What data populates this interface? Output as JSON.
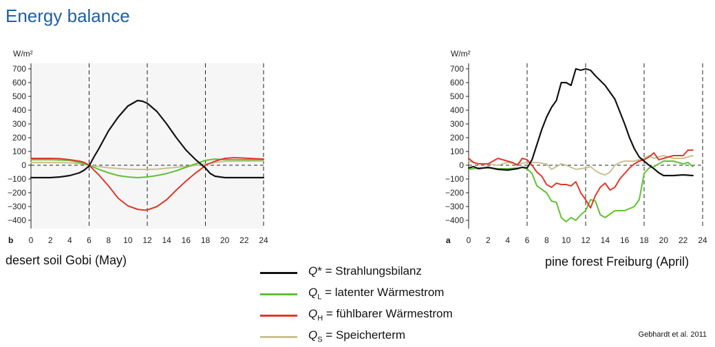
{
  "title": "Energy balance",
  "legend": [
    {
      "symbol": "Q",
      "sub": "",
      "suffix": "*",
      "text": " = Strahlungsbilanz",
      "color": "#111111"
    },
    {
      "symbol": "Q",
      "sub": "L",
      "suffix": "",
      "text": " = latenter Wärmestrom",
      "color": "#5ec232"
    },
    {
      "symbol": "Q",
      "sub": "H",
      "suffix": "",
      "text": " = fühlbarer Wärmestrom",
      "color": "#e0372a"
    },
    {
      "symbol": "Q",
      "sub": "S",
      "suffix": "",
      "text": " = Speicherterm",
      "color": "#c9c095"
    }
  ],
  "source": "Gebhardt et al. 2011",
  "chart_data": [
    {
      "type": "line",
      "panel_label": "b",
      "caption": "desert soil Gobi (May)",
      "ylabel": "W/m²",
      "xlim": [
        0,
        24
      ],
      "ylim": [
        -460,
        740
      ],
      "xticks": [
        0,
        2,
        4,
        6,
        8,
        10,
        12,
        14,
        16,
        18,
        20,
        22,
        24
      ],
      "yticks": [
        700,
        600,
        500,
        400,
        300,
        200,
        100,
        0,
        -100,
        -200,
        -300,
        -400
      ],
      "vlines": [
        6,
        12,
        18,
        24
      ],
      "series": [
        {
          "key": "Qstar",
          "color": "#111111",
          "x": [
            0,
            2,
            3,
            4,
            5,
            5.5,
            6,
            6.5,
            7,
            8,
            9,
            10,
            11,
            11.5,
            12,
            13,
            14,
            15,
            16,
            17,
            17.5,
            18,
            18.5,
            19,
            20,
            22,
            24
          ],
          "y": [
            -90,
            -90,
            -85,
            -75,
            -55,
            -35,
            -5,
            60,
            120,
            250,
            350,
            430,
            470,
            465,
            450,
            390,
            300,
            200,
            110,
            40,
            10,
            -20,
            -60,
            -80,
            -90,
            -90,
            -90
          ]
        },
        {
          "key": "QL",
          "color": "#5ec232",
          "x": [
            0,
            2,
            4,
            5,
            6,
            7,
            8,
            9,
            10,
            11,
            12,
            13,
            14,
            15,
            16,
            17,
            18,
            19,
            20,
            22,
            24
          ],
          "y": [
            40,
            40,
            35,
            20,
            0,
            -30,
            -55,
            -75,
            -85,
            -90,
            -85,
            -75,
            -60,
            -40,
            -15,
            10,
            35,
            45,
            40,
            40,
            40
          ]
        },
        {
          "key": "QH",
          "color": "#e0372a",
          "x": [
            0,
            2,
            3,
            4,
            5,
            5.5,
            6,
            7,
            8,
            9,
            10,
            11,
            11.5,
            12,
            13,
            14,
            15,
            16,
            17,
            17.5,
            18,
            19,
            20,
            21,
            22,
            24
          ],
          "y": [
            50,
            50,
            48,
            40,
            30,
            20,
            0,
            -70,
            -150,
            -240,
            -295,
            -320,
            -325,
            -325,
            -300,
            -250,
            -180,
            -115,
            -55,
            -30,
            0,
            30,
            50,
            55,
            52,
            45
          ]
        },
        {
          "key": "QS",
          "color": "#c9c095",
          "x": [
            0,
            2,
            4,
            5,
            6,
            7,
            8,
            9,
            10,
            11,
            12,
            13,
            14,
            15,
            16,
            17,
            18,
            19,
            20,
            22,
            24
          ],
          "y": [
            20,
            20,
            18,
            12,
            0,
            -10,
            -18,
            -24,
            -28,
            -30,
            -30,
            -28,
            -22,
            -15,
            -8,
            0,
            10,
            20,
            28,
            30,
            30
          ]
        }
      ]
    },
    {
      "type": "line",
      "panel_label": "a",
      "caption": "pine forest Freiburg (April)",
      "ylabel": "W/m²",
      "xlim": [
        0,
        24
      ],
      "ylim": [
        -460,
        740
      ],
      "xticks": [
        0,
        2,
        4,
        6,
        8,
        10,
        12,
        14,
        16,
        18,
        20,
        22,
        24
      ],
      "yticks": [
        700,
        600,
        500,
        400,
        300,
        200,
        100,
        0,
        -100,
        -200,
        -300,
        -400
      ],
      "vlines": [
        6,
        12,
        18,
        24
      ],
      "series": [
        {
          "key": "Qstar",
          "color": "#111111",
          "x": [
            0,
            0.5,
            1,
            2,
            3,
            4,
            5,
            5.5,
            6,
            6.5,
            7,
            7.5,
            8,
            8.5,
            9,
            9.5,
            10,
            10.5,
            11,
            11.5,
            12,
            12.5,
            13,
            14,
            15,
            16,
            16.5,
            17,
            17.5,
            18,
            18.5,
            19,
            19.5,
            20,
            21,
            22,
            23
          ],
          "y": [
            -20,
            -10,
            -25,
            -15,
            -30,
            -35,
            -25,
            -15,
            -20,
            40,
            150,
            260,
            350,
            420,
            470,
            600,
            600,
            580,
            700,
            690,
            700,
            690,
            650,
            580,
            480,
            300,
            200,
            120,
            60,
            30,
            0,
            -25,
            -55,
            -75,
            -75,
            -70,
            -75
          ]
        },
        {
          "key": "QL",
          "color": "#5ec232",
          "x": [
            0,
            1,
            2,
            3,
            4,
            5,
            5.5,
            6,
            6.5,
            7,
            8,
            8.5,
            9,
            9.5,
            10,
            10.5,
            11,
            11.5,
            12,
            12.5,
            13,
            13.5,
            14,
            15,
            16,
            17,
            17.5,
            18,
            18.5,
            19,
            20,
            21,
            22,
            22.5,
            23
          ],
          "y": [
            -30,
            -20,
            -20,
            -25,
            -25,
            -20,
            -15,
            -25,
            -60,
            -150,
            -200,
            -260,
            -270,
            -380,
            -410,
            -380,
            -400,
            -360,
            -330,
            -250,
            -260,
            -360,
            -380,
            -330,
            -330,
            -300,
            -250,
            -60,
            -20,
            -10,
            30,
            30,
            10,
            20,
            -10
          ]
        },
        {
          "key": "QH",
          "color": "#e0372a",
          "x": [
            0,
            0.5,
            1,
            2,
            3,
            4,
            4.5,
            5,
            5.5,
            6,
            6.5,
            7,
            7.5,
            8,
            8.5,
            9,
            9.5,
            10,
            10.5,
            11,
            11.5,
            12,
            12.5,
            13,
            13.5,
            14,
            14.5,
            15,
            15.5,
            16,
            16.5,
            17,
            17.5,
            18,
            18.5,
            19,
            19.5,
            20,
            20.5,
            21,
            22,
            22.5,
            23
          ],
          "y": [
            50,
            20,
            10,
            10,
            50,
            30,
            20,
            0,
            50,
            40,
            0,
            -50,
            -80,
            -140,
            -160,
            -130,
            -140,
            -140,
            -150,
            -120,
            -200,
            -250,
            -310,
            -220,
            -160,
            -130,
            -180,
            -160,
            -100,
            -60,
            -20,
            10,
            30,
            40,
            60,
            90,
            40,
            50,
            60,
            70,
            70,
            110,
            110
          ]
        },
        {
          "key": "QS",
          "color": "#c9c095",
          "x": [
            0,
            1,
            2,
            3,
            4,
            5,
            6,
            7,
            8,
            8.5,
            9,
            9.5,
            10,
            11,
            12,
            12.5,
            13,
            13.5,
            14,
            14.5,
            15,
            15.5,
            16,
            17,
            17.5,
            18,
            18.5,
            19,
            19.5,
            20,
            21,
            22,
            23
          ],
          "y": [
            30,
            10,
            10,
            0,
            20,
            10,
            20,
            20,
            10,
            -30,
            -10,
            10,
            0,
            -30,
            -20,
            -10,
            -40,
            -60,
            -70,
            -50,
            0,
            20,
            30,
            30,
            40,
            50,
            70,
            50,
            60,
            70,
            50,
            50,
            70
          ]
        }
      ]
    }
  ]
}
